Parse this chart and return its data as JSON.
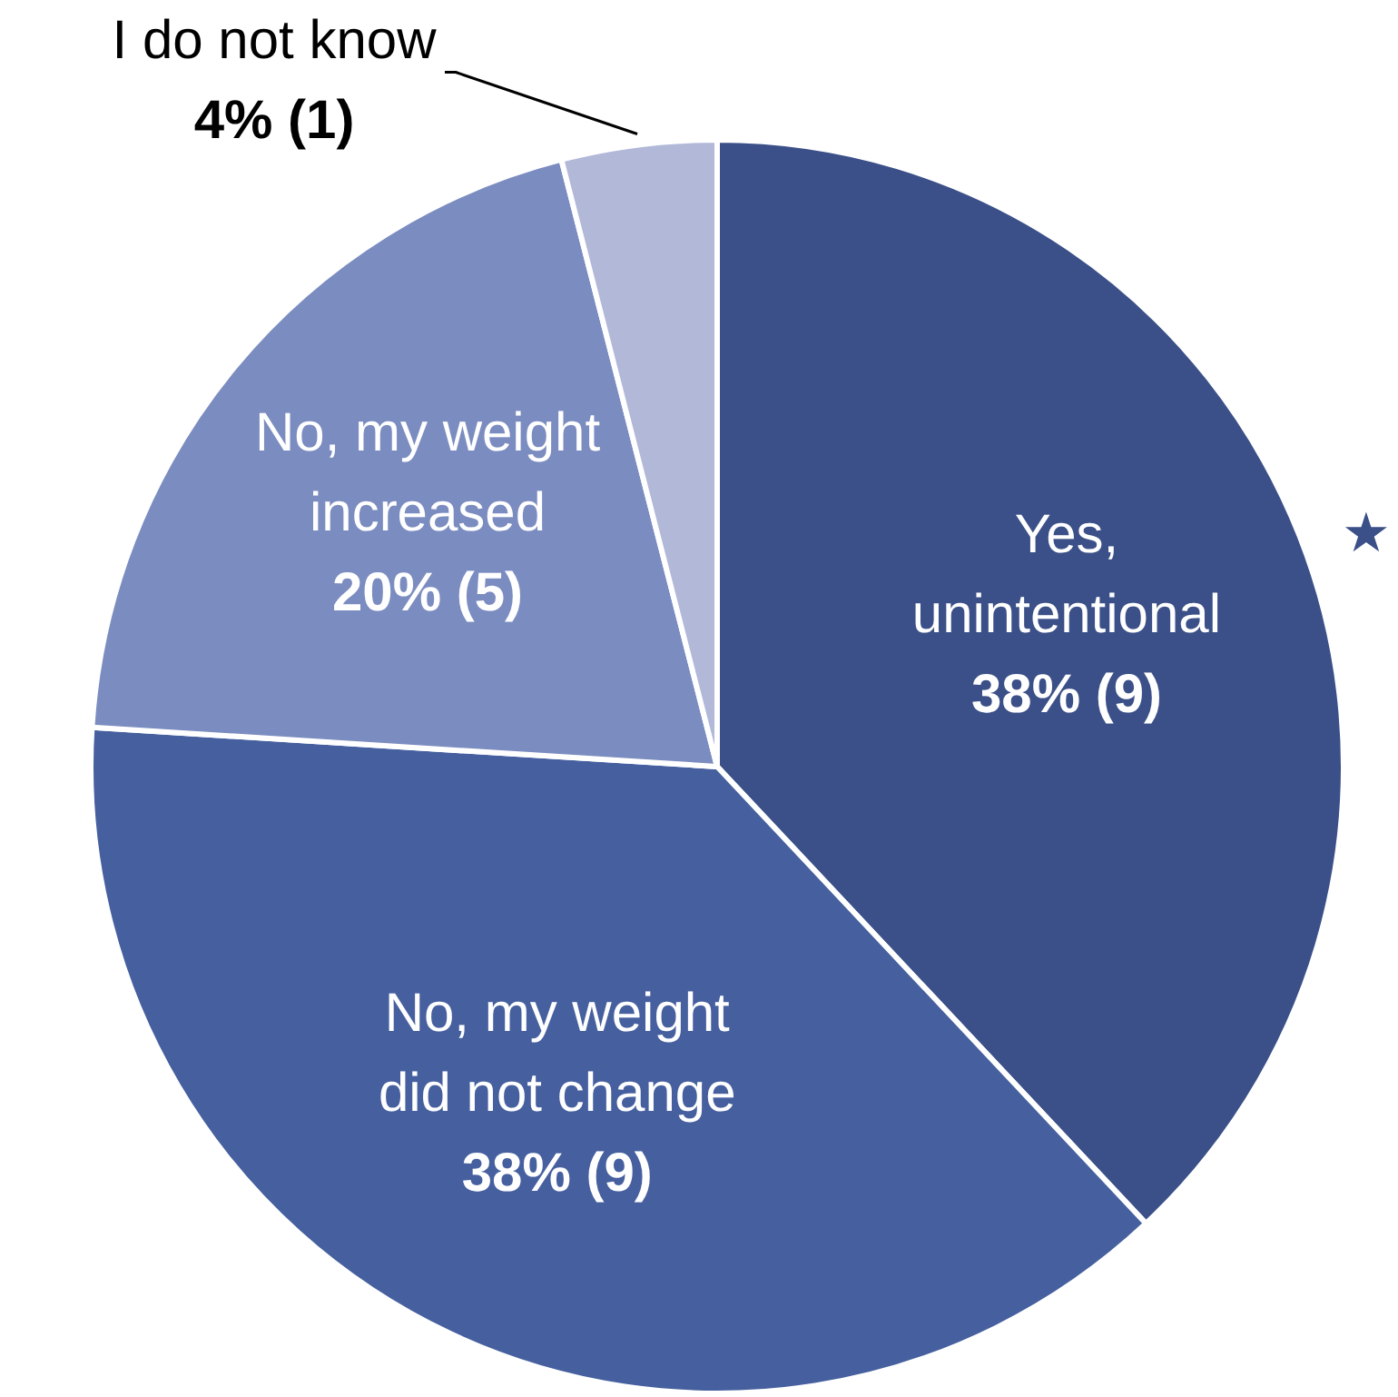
{
  "chart_data": {
    "type": "pie",
    "categories": [
      "Yes,\nunintentional",
      "No, my weight\ndid not change",
      "No, my weight\nincreased",
      "I do not know"
    ],
    "values": [
      38,
      38,
      20,
      4
    ],
    "colors": [
      "#3b5088",
      "#46609f",
      "#7b8cc0",
      "#b1b8d8"
    ],
    "value_labels": [
      "38% (9)",
      "38% (9)",
      "20% (5)",
      "4% (1)"
    ],
    "annotations": [
      "★"
    ]
  }
}
